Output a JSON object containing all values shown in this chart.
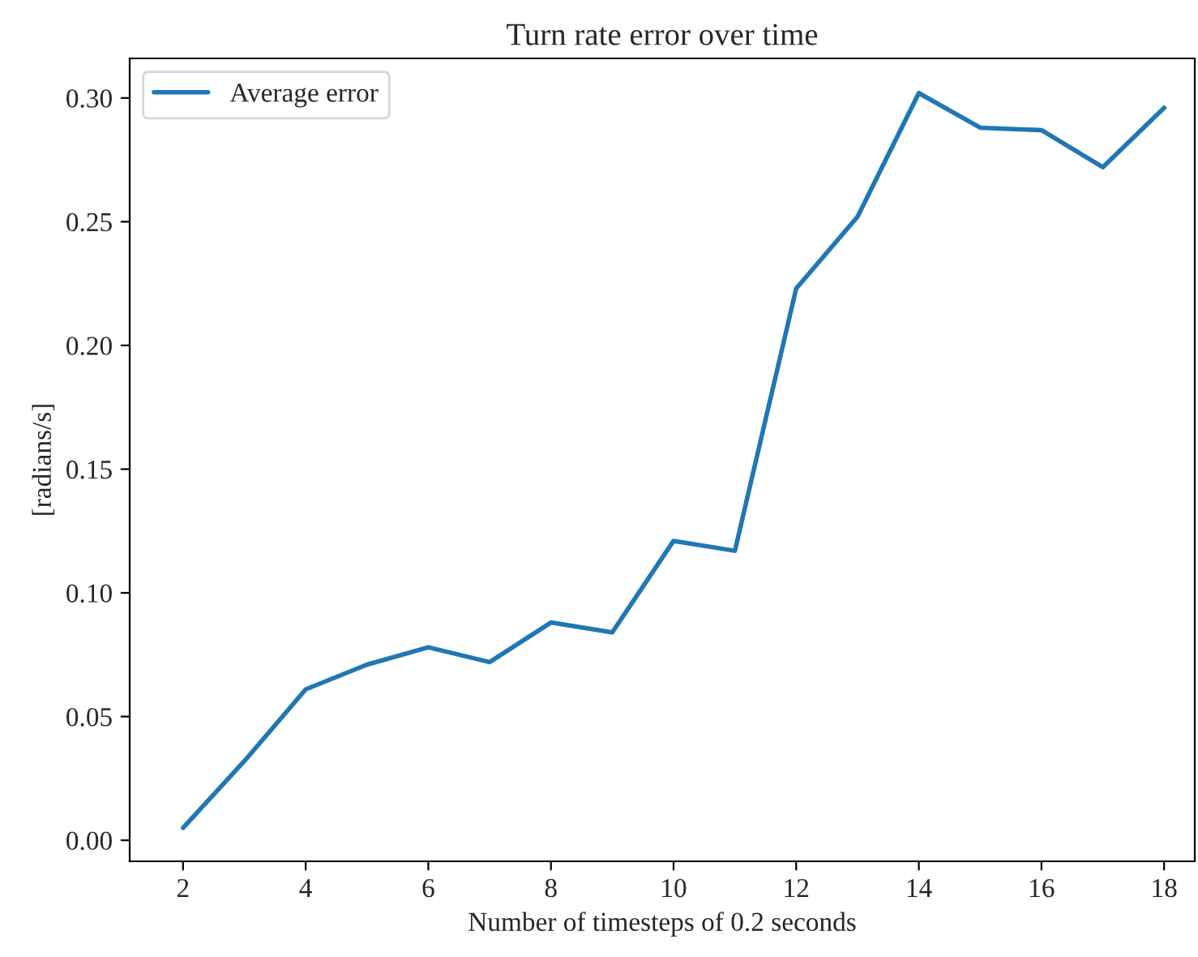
{
  "chart_data": {
    "type": "line",
    "title": "Turn rate error over time",
    "xlabel": "Number of timesteps of 0.2 seconds",
    "ylabel": "[radians/s]",
    "x": [
      2,
      3,
      4,
      5,
      6,
      7,
      8,
      9,
      10,
      11,
      12,
      13,
      14,
      15,
      16,
      17,
      18
    ],
    "series": [
      {
        "name": "Average error",
        "color": "#1f77b4",
        "values": [
          0.005,
          0.032,
          0.061,
          0.071,
          0.078,
          0.072,
          0.088,
          0.084,
          0.121,
          0.117,
          0.223,
          0.252,
          0.302,
          0.288,
          0.287,
          0.272,
          0.296
        ]
      }
    ],
    "xlim": [
      1.13,
      18.5
    ],
    "ylim": [
      -0.0085,
      0.316
    ],
    "xticks": [
      2,
      4,
      6,
      8,
      10,
      12,
      14,
      16,
      18
    ],
    "yticks": [
      {
        "value": 0,
        "label": "0.00"
      },
      {
        "value": 0.05,
        "label": "0.05"
      },
      {
        "value": 0.1,
        "label": "0.10"
      },
      {
        "value": 0.15,
        "label": "0.15"
      },
      {
        "value": 0.2,
        "label": "0.20"
      },
      {
        "value": 0.25,
        "label": "0.25"
      },
      {
        "value": 0.3,
        "label": "0.30"
      }
    ],
    "grid": false,
    "legend": "top left",
    "marker": "none",
    "line_style": "solid"
  }
}
